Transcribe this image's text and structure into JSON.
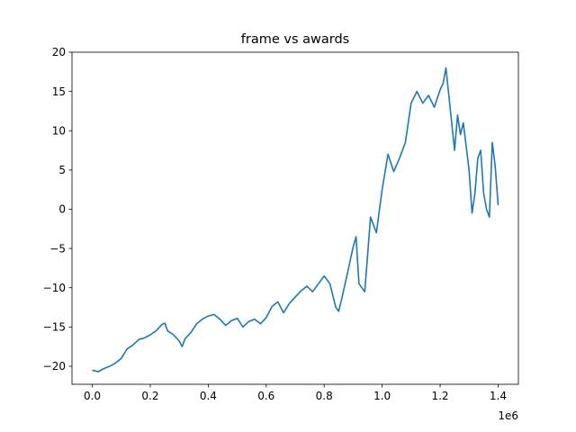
{
  "chart_data": {
    "type": "line",
    "title": "frame vs awards",
    "xlabel": "",
    "ylabel": "",
    "x_offset_label": "1e6",
    "xlim": [
      -0.07,
      1.47
    ],
    "ylim": [
      -22.3,
      20
    ],
    "x_ticks": [
      0.0,
      0.2,
      0.4,
      0.6,
      0.8,
      1.0,
      1.2,
      1.4
    ],
    "x_tick_labels": [
      "0.0",
      "0.2",
      "0.4",
      "0.6",
      "0.8",
      "1.0",
      "1.2",
      "1.4"
    ],
    "y_ticks": [
      -20,
      -15,
      -10,
      -5,
      0,
      5,
      10,
      15,
      20
    ],
    "y_tick_labels": [
      "−20",
      "−15",
      "−10",
      "−5",
      "0",
      "5",
      "10",
      "15",
      "20"
    ],
    "grid": false,
    "series": [
      {
        "color": "#1f77b4",
        "x": [
          0.0,
          0.02,
          0.04,
          0.06,
          0.08,
          0.1,
          0.12,
          0.14,
          0.16,
          0.18,
          0.2,
          0.22,
          0.24,
          0.25,
          0.26,
          0.28,
          0.3,
          0.31,
          0.32,
          0.34,
          0.36,
          0.38,
          0.4,
          0.42,
          0.44,
          0.46,
          0.48,
          0.5,
          0.52,
          0.54,
          0.56,
          0.58,
          0.6,
          0.62,
          0.64,
          0.66,
          0.68,
          0.7,
          0.72,
          0.74,
          0.76,
          0.78,
          0.8,
          0.82,
          0.84,
          0.85,
          0.86,
          0.88,
          0.9,
          0.91,
          0.92,
          0.94,
          0.96,
          0.98,
          1.0,
          1.02,
          1.04,
          1.06,
          1.08,
          1.1,
          1.12,
          1.14,
          1.16,
          1.18,
          1.2,
          1.21,
          1.22,
          1.23,
          1.24,
          1.25,
          1.26,
          1.27,
          1.28,
          1.29,
          1.3,
          1.31,
          1.32,
          1.33,
          1.34,
          1.35,
          1.36,
          1.37,
          1.38,
          1.39,
          1.4
        ],
        "y": [
          -20.5,
          -20.7,
          -20.3,
          -20.0,
          -19.6,
          -19.0,
          -17.8,
          -17.3,
          -16.6,
          -16.4,
          -16.0,
          -15.5,
          -14.7,
          -14.5,
          -15.5,
          -16.0,
          -16.8,
          -17.5,
          -16.5,
          -15.7,
          -14.6,
          -14.0,
          -13.6,
          -13.4,
          -14.0,
          -14.8,
          -14.2,
          -13.9,
          -15.0,
          -14.3,
          -14.0,
          -14.6,
          -13.8,
          -12.4,
          -11.8,
          -13.2,
          -12.0,
          -11.2,
          -10.4,
          -9.8,
          -10.5,
          -9.5,
          -8.5,
          -9.5,
          -12.5,
          -13.0,
          -11.5,
          -8.2,
          -4.8,
          -3.5,
          -9.5,
          -10.5,
          -1.0,
          -3.0,
          2.5,
          7.0,
          4.8,
          6.5,
          8.5,
          13.5,
          15.0,
          13.5,
          14.5,
          13.0,
          15.2,
          16.0,
          18.0,
          14.5,
          11.0,
          7.5,
          12.0,
          9.5,
          11.0,
          8.0,
          5.0,
          -0.5,
          2.0,
          6.5,
          7.5,
          2.0,
          0.0,
          -1.0,
          8.5,
          5.5,
          0.5
        ]
      }
    ]
  }
}
